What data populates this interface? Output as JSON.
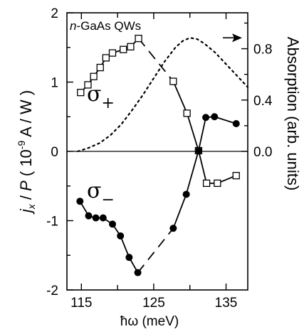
{
  "chart_data": {
    "type": "line",
    "annotation": {
      "prefix": "n",
      "rest": "-GaAs QWs"
    },
    "xlabel": {
      "symbol": "ħω",
      "unit": " (meV)"
    },
    "ylabel_left": {
      "j": "j",
      "sub": "x",
      "slash": " / ",
      "P": "P",
      "rest": " ( 10",
      "exp": "-9",
      "units": "  A / W )"
    },
    "ylabel_right": "Absorption (arb. units)",
    "xlim": [
      113,
      138
    ],
    "ylim_left": [
      -2,
      2
    ],
    "ylim_right": [
      -1.08,
      1.08
    ],
    "xticks": [
      115,
      125,
      135
    ],
    "xtick_labels": [
      "115",
      "125",
      "135"
    ],
    "yticks_left": [
      -2,
      -1,
      0,
      1,
      2
    ],
    "ytick_labels_left": [
      "-2",
      "-1",
      "0",
      "1",
      "2"
    ],
    "yticks_right": [
      0.0,
      0.4,
      0.8
    ],
    "ytick_labels_right": [
      "0.0",
      "0.4",
      "0.8"
    ],
    "zero_line": true,
    "series": [
      {
        "name": "σ+",
        "label_base": "σ",
        "label_sign": "+",
        "marker": "open-square",
        "x": [
          114.9,
          115.9,
          116.7,
          117.6,
          118.4,
          119.3,
          120.8,
          121.8,
          122.9,
          127.7,
          129.6,
          131.2,
          132.3,
          133.8,
          136.4
        ],
        "y": [
          0.85,
          0.96,
          1.08,
          1.21,
          1.35,
          1.42,
          1.47,
          1.51,
          1.63,
          1.01,
          0.55,
          0.01,
          -0.46,
          -0.46,
          -0.35
        ],
        "segments": [
          [
            0,
            8,
            "solid"
          ],
          [
            8,
            9,
            "dashed"
          ],
          [
            9,
            14,
            "solid"
          ]
        ]
      },
      {
        "name": "σ−",
        "label_base": "σ",
        "label_sign": "−",
        "marker": "filled-circle",
        "x": [
          114.8,
          116.0,
          117.0,
          118.0,
          119.3,
          120.4,
          121.6,
          122.8,
          127.7,
          129.5,
          131.2,
          132.2,
          133.4,
          136.4
        ],
        "y": [
          -0.72,
          -0.93,
          -0.96,
          -0.96,
          -1.05,
          -1.22,
          -1.53,
          -1.75,
          -1.11,
          -0.62,
          0.01,
          0.49,
          0.5,
          0.4
        ],
        "segments": [
          [
            0,
            7,
            "solid"
          ],
          [
            7,
            8,
            "dashed"
          ],
          [
            8,
            13,
            "solid"
          ]
        ]
      },
      {
        "name": "Absorption",
        "axis": "right",
        "style": "dotted",
        "x": [
          114.5,
          116,
          117.5,
          119,
          120.5,
          122,
          123.5,
          125,
          126.5,
          128,
          129,
          130,
          131,
          132,
          133.5,
          135,
          136.5,
          138
        ],
        "y": [
          0.0,
          0.027,
          0.064,
          0.125,
          0.21,
          0.32,
          0.44,
          0.57,
          0.7,
          0.81,
          0.86,
          0.885,
          0.875,
          0.84,
          0.77,
          0.68,
          0.59,
          0.5
        ]
      }
    ],
    "arrow": {
      "direction": "right",
      "points_to": "right-axis"
    },
    "grid": false
  }
}
